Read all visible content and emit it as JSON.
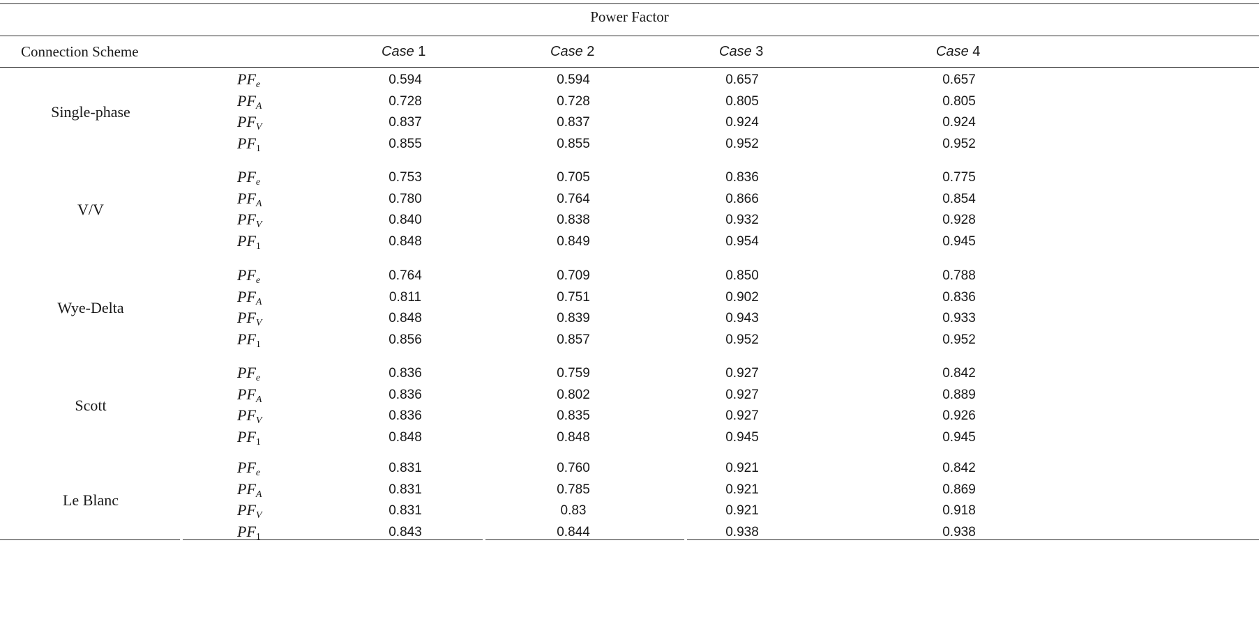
{
  "title": "Power Factor",
  "header": {
    "connection_scheme": "Connection Scheme",
    "cases": [
      {
        "word": "Case",
        "num": "1"
      },
      {
        "word": "Case",
        "num": "2"
      },
      {
        "word": "Case",
        "num": "3"
      },
      {
        "word": "Case",
        "num": "4"
      }
    ]
  },
  "pf_labels": [
    {
      "base": "PF",
      "sub": "e"
    },
    {
      "base": "PF",
      "sub": "A"
    },
    {
      "base": "PF",
      "sub": "V"
    },
    {
      "base": "PF",
      "sub": "1"
    }
  ],
  "groups": [
    {
      "name": "Single-phase",
      "rows": [
        [
          "0.594",
          "0.594",
          "0.657",
          "0.657"
        ],
        [
          "0.728",
          "0.728",
          "0.805",
          "0.805"
        ],
        [
          "0.837",
          "0.837",
          "0.924",
          "0.924"
        ],
        [
          "0.855",
          "0.855",
          "0.952",
          "0.952"
        ]
      ]
    },
    {
      "name": "V/V",
      "rows": [
        [
          "0.753",
          "0.705",
          "0.836",
          "0.775"
        ],
        [
          "0.780",
          "0.764",
          "0.866",
          "0.854"
        ],
        [
          "0.840",
          "0.838",
          "0.932",
          "0.928"
        ],
        [
          "0.848",
          "0.849",
          "0.954",
          "0.945"
        ]
      ]
    },
    {
      "name": "Wye-Delta",
      "rows": [
        [
          "0.764",
          "0.709",
          "0.850",
          "0.788"
        ],
        [
          "0.811",
          "0.751",
          "0.902",
          "0.836"
        ],
        [
          "0.848",
          "0.839",
          "0.943",
          "0.933"
        ],
        [
          "0.856",
          "0.857",
          "0.952",
          "0.952"
        ]
      ]
    },
    {
      "name": "Scott",
      "rows": [
        [
          "0.836",
          "0.759",
          "0.927",
          "0.842"
        ],
        [
          "0.836",
          "0.802",
          "0.927",
          "0.889"
        ],
        [
          "0.836",
          "0.835",
          "0.927",
          "0.926"
        ],
        [
          "0.848",
          "0.848",
          "0.945",
          "0.945"
        ]
      ]
    },
    {
      "name": "Le Blanc",
      "rows": [
        [
          "0.831",
          "0.760",
          "0.921",
          "0.842"
        ],
        [
          "0.831",
          "0.785",
          "0.921",
          "0.869"
        ],
        [
          "0.831",
          "0.83",
          "0.921",
          "0.918"
        ],
        [
          "0.843",
          "0.844",
          "0.938",
          "0.938"
        ]
      ]
    }
  ]
}
